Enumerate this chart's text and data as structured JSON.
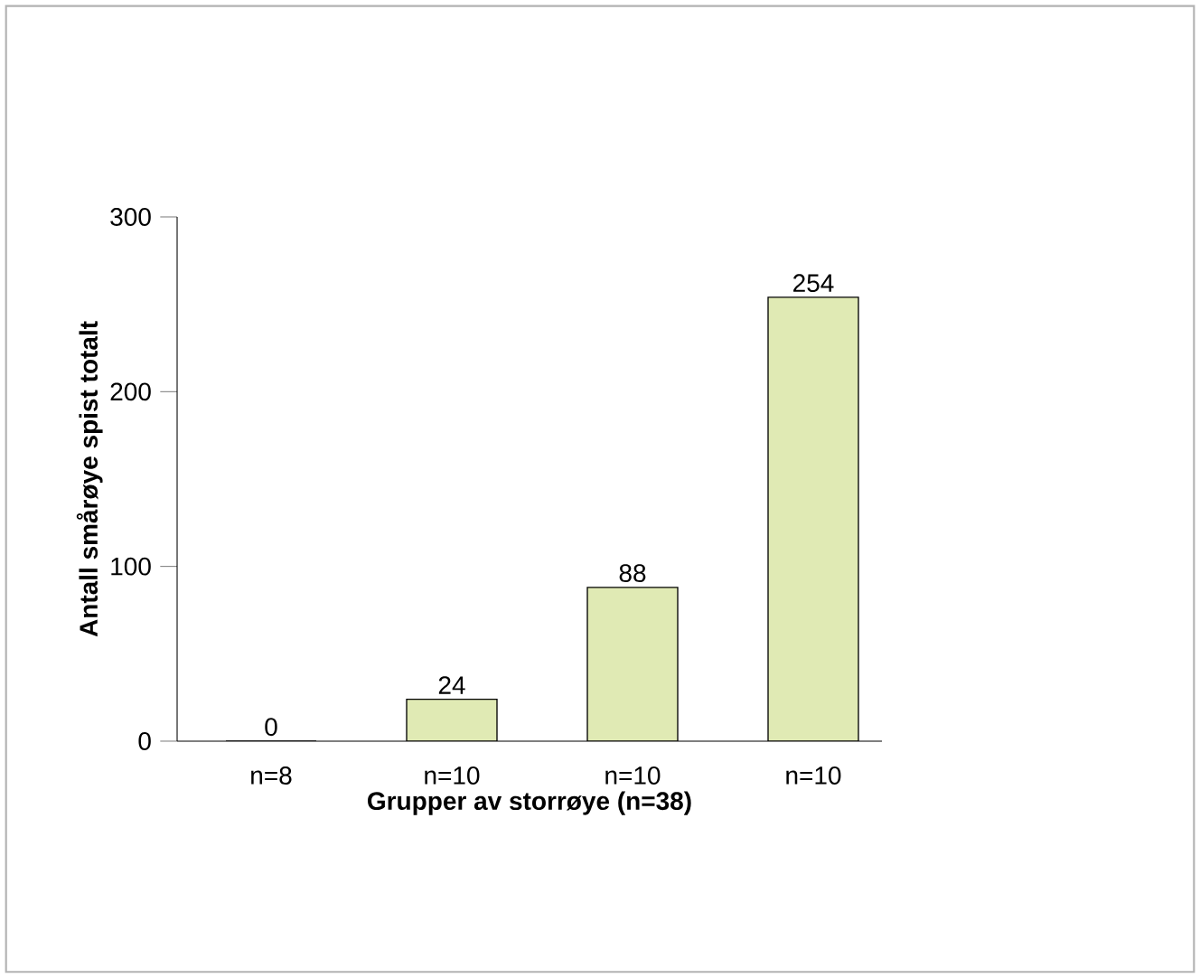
{
  "chart_data": {
    "type": "bar",
    "xlabel": "Grupper av storrøye (n=38)",
    "ylabel": "Antall smårøye spist totalt",
    "categories": [
      "n=8",
      "n=10",
      "n=10",
      "n=10"
    ],
    "values": [
      0,
      24,
      88,
      254
    ],
    "color": "#e0eab4",
    "ylim": [
      0,
      300
    ],
    "yticks": [
      0,
      100,
      200,
      300
    ],
    "data_labels": true
  }
}
